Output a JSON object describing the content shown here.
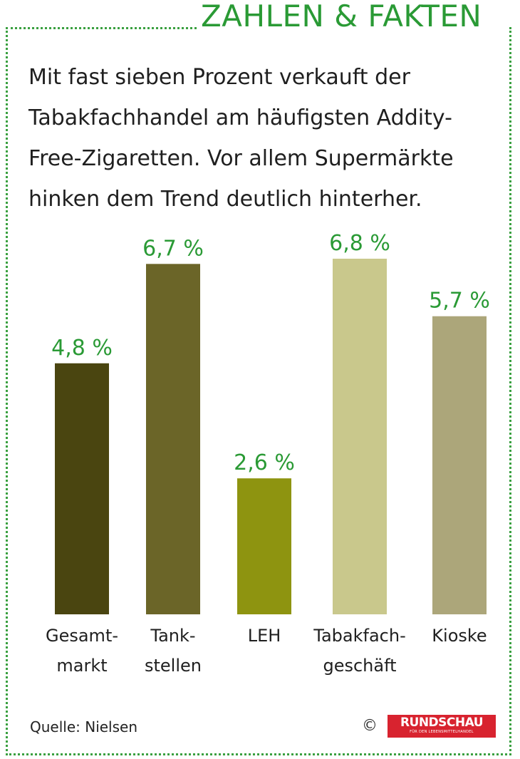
{
  "header": {
    "title": "ZAHLEN & FAKTEN"
  },
  "intro": "Mit fast sieben Prozent verkauft der\nTabakfachhandel am häufigsten Addity-\nFree-Zigaretten. Vor allem Supermärkte\nhinken dem Trend deutlich hinterher.",
  "chart_data": {
    "type": "bar",
    "categories": [
      "Gesamt-\nmarkt",
      "Tank-\nstellen",
      "LEH",
      "Tabakfach-\ngeschäft",
      "Kioske"
    ],
    "values": [
      4.8,
      6.7,
      2.6,
      6.8,
      5.7
    ],
    "value_labels": [
      "4,8 %",
      "6,7 %",
      "2,6 %",
      "6,8 %",
      "5,7 %"
    ],
    "bar_colors": [
      "#4a4510",
      "#6b6528",
      "#8e9410",
      "#c9c88c",
      "#aca67a"
    ],
    "label_color": "#2a9a35",
    "ylim": [
      0,
      6.8
    ]
  },
  "footer": {
    "source": "Quelle: Nielsen",
    "copyright": "©",
    "logo_text": "RUNDSCHAU",
    "logo_subtext": "FÜR DEN LEBENSMITTELHANDEL"
  }
}
